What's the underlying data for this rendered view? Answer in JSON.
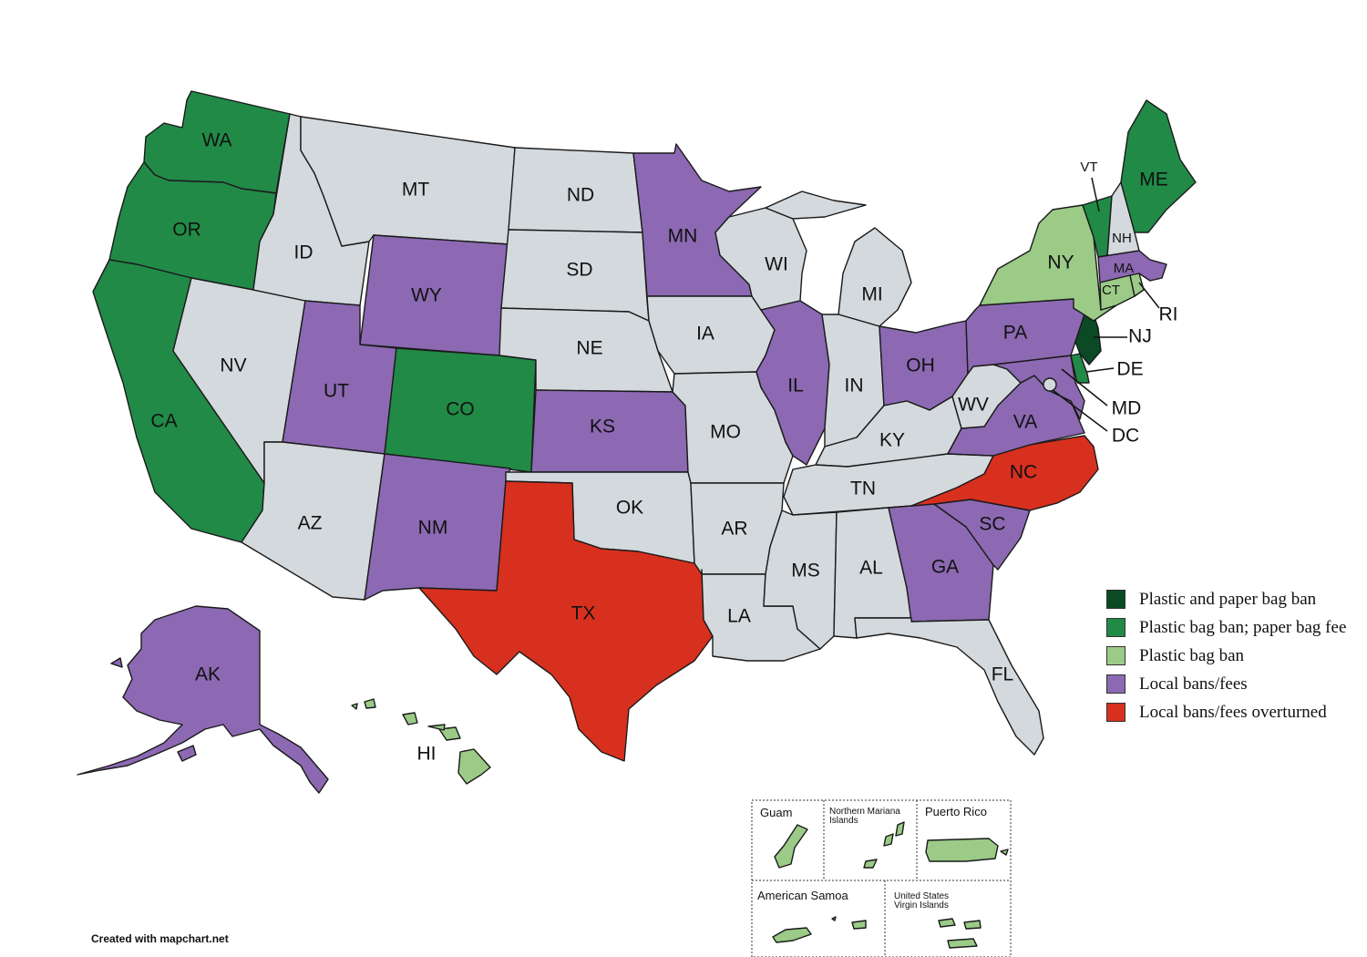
{
  "colors": {
    "plastic_paper_ban": "#0b4a24",
    "ban_fee": "#218a47",
    "plastic_ban": "#9bcb87",
    "local": "#8c69b2",
    "overturned": "#d8301f",
    "none": "#d3d9dd"
  },
  "legend": [
    {
      "label": "Plastic and paper bag ban",
      "color": "#0b4a24"
    },
    {
      "label": "Plastic bag ban; paper bag fee",
      "color": "#218a47"
    },
    {
      "label": "Plastic bag ban",
      "color": "#9bcb87"
    },
    {
      "label": "Local bans/fees",
      "color": "#8c69b2"
    },
    {
      "label": "Local bans/fees overturned",
      "color": "#d8301f"
    }
  ],
  "states": {
    "WA": "WA",
    "OR": "OR",
    "CA": "CA",
    "NV": "NV",
    "ID": "ID",
    "MT": "MT",
    "WY": "WY",
    "UT": "UT",
    "CO": "CO",
    "AZ": "AZ",
    "NM": "NM",
    "ND": "ND",
    "SD": "SD",
    "NE": "NE",
    "KS": "KS",
    "OK": "OK",
    "TX": "TX",
    "MN": "MN",
    "IA": "IA",
    "MO": "MO",
    "AR": "AR",
    "LA": "LA",
    "WI": "WI",
    "IL": "IL",
    "MI": "MI",
    "IN": "IN",
    "OH": "OH",
    "KY": "KY",
    "TN": "TN",
    "MS": "MS",
    "AL": "AL",
    "GA": "GA",
    "FL": "FL",
    "SC": "SC",
    "NC": "NC",
    "VA": "VA",
    "WV": "WV",
    "PA": "PA",
    "NY": "NY",
    "VT": "VT",
    "NH": "NH",
    "ME": "ME",
    "MA": "MA",
    "CT": "CT",
    "RI": "RI",
    "NJ": "NJ",
    "DE": "DE",
    "MD": "MD",
    "DC": "DC",
    "AK": "AK",
    "HI": "HI"
  },
  "territories": {
    "guam": "Guam",
    "nmi_line1": "Northern Mariana",
    "nmi_line2": "Islands",
    "puerto_rico": "Puerto Rico",
    "american_samoa": "American Samoa",
    "usvi_line1": "United States",
    "usvi_line2": "Virgin Islands"
  },
  "credit": "Created with mapchart.net"
}
